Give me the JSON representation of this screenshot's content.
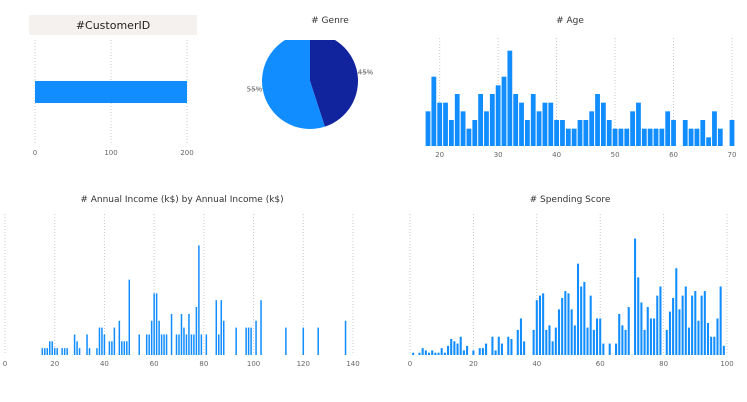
{
  "theme": {
    "bar_color": "#118dff",
    "dark_color": "#12239e"
  },
  "chart_data": [
    {
      "id": "customer",
      "type": "bar",
      "title": "#CustomerID",
      "categories": [
        ""
      ],
      "values": [
        200
      ],
      "xlim": [
        0,
        200
      ],
      "xticks": [
        "0",
        "100",
        "200"
      ]
    },
    {
      "id": "genre",
      "type": "pie",
      "title": "# Genre",
      "slices": [
        {
          "label": "45%",
          "value": 45,
          "color": "#12239e"
        },
        {
          "label": "55%",
          "value": 55,
          "color": "#118dff"
        }
      ]
    },
    {
      "id": "age",
      "type": "bar",
      "title": "# Age",
      "xlim": [
        18,
        70
      ],
      "ylim": [
        0,
        12
      ],
      "xticks": [
        "20",
        "30",
        "40",
        "50",
        "60",
        "70"
      ],
      "x": [
        18,
        19,
        20,
        21,
        22,
        23,
        24,
        25,
        26,
        27,
        28,
        29,
        30,
        31,
        32,
        33,
        34,
        35,
        36,
        37,
        38,
        39,
        40,
        41,
        42,
        43,
        44,
        45,
        46,
        47,
        48,
        49,
        50,
        51,
        52,
        53,
        54,
        55,
        56,
        57,
        58,
        59,
        60,
        61,
        62,
        63,
        64,
        65,
        66,
        67,
        68,
        69,
        70
      ],
      "values": [
        4,
        8,
        5,
        5,
        3,
        6,
        4,
        2,
        3,
        6,
        4,
        6,
        7,
        8,
        11,
        6,
        5,
        3,
        6,
        4,
        5,
        5,
        3,
        3,
        2,
        2,
        3,
        3,
        4,
        6,
        5,
        3,
        2,
        2,
        2,
        4,
        5,
        2,
        2,
        2,
        2,
        4,
        3,
        0,
        3,
        2,
        2,
        3,
        1,
        4,
        2,
        0,
        3
      ]
    },
    {
      "id": "income",
      "type": "bar",
      "title": "# Annual Income (k$) by Annual Income (k$)",
      "xlim": [
        0,
        140
      ],
      "ylim": [
        0,
        4
      ],
      "xticks": [
        "0",
        "20",
        "40",
        "60",
        "80",
        "100",
        "120",
        "140"
      ],
      "x": [
        15,
        16,
        17,
        18,
        19,
        20,
        21,
        23,
        24,
        25,
        28,
        29,
        30,
        33,
        34,
        37,
        38,
        39,
        40,
        42,
        43,
        44,
        46,
        47,
        48,
        49,
        50,
        54,
        57,
        58,
        59,
        60,
        61,
        62,
        63,
        64,
        65,
        67,
        69,
        70,
        71,
        72,
        73,
        74,
        75,
        76,
        77,
        78,
        79,
        81,
        85,
        86,
        87,
        88,
        93,
        97,
        98,
        99,
        101,
        103,
        113,
        120,
        126,
        137
      ],
      "values": [
        0.2,
        0.2,
        0.2,
        0.4,
        0.4,
        0.2,
        0.2,
        0.2,
        0.2,
        0.2,
        0.6,
        0.4,
        0.2,
        0.6,
        0.2,
        0.2,
        0.8,
        0.8,
        0.6,
        0.4,
        0.4,
        0.8,
        1.0,
        0.4,
        0.4,
        0.4,
        2.2,
        0.6,
        0.6,
        0.6,
        1.0,
        1.8,
        1.8,
        1.0,
        0.6,
        0.6,
        0.6,
        1.2,
        0.6,
        0.6,
        1.2,
        0.8,
        0.6,
        1.2,
        0.6,
        0.6,
        1.4,
        3.2,
        0.6,
        0.6,
        1.6,
        0.6,
        1.6,
        1.0,
        0.8,
        0.8,
        0.8,
        0.8,
        1.0,
        1.6,
        0.8,
        0.8,
        0.8,
        1.0
      ]
    },
    {
      "id": "spending",
      "type": "bar",
      "title": "# Spending Score",
      "xlim": [
        0,
        100
      ],
      "ylim": [
        0,
        6
      ],
      "xticks": [
        "0",
        "20",
        "40",
        "60",
        "80",
        "100"
      ],
      "x": [
        1,
        3,
        4,
        5,
        6,
        7,
        8,
        9,
        10,
        11,
        12,
        13,
        14,
        15,
        16,
        17,
        18,
        20,
        22,
        23,
        24,
        26,
        27,
        28,
        29,
        31,
        32,
        34,
        35,
        36,
        39,
        40,
        41,
        42,
        43,
        44,
        45,
        46,
        47,
        48,
        49,
        50,
        51,
        52,
        53,
        54,
        55,
        56,
        57,
        58,
        59,
        60,
        61,
        63,
        65,
        66,
        67,
        68,
        69,
        71,
        72,
        73,
        74,
        75,
        76,
        77,
        78,
        79,
        81,
        82,
        83,
        84,
        85,
        86,
        87,
        88,
        89,
        90,
        91,
        92,
        93,
        94,
        95,
        96,
        97,
        98,
        99
      ],
      "values": [
        0.1,
        0.1,
        0.3,
        0.2,
        0.1,
        0.2,
        0.1,
        0.1,
        0.3,
        0.1,
        0.4,
        0.7,
        0.6,
        0.5,
        0.8,
        0.2,
        0.4,
        0.2,
        0.3,
        0.3,
        0.5,
        0.8,
        0.2,
        0.8,
        0.5,
        0.8,
        0.7,
        1.1,
        1.6,
        0.6,
        1.1,
        2.4,
        2.6,
        2.7,
        1.1,
        1.3,
        0.6,
        1.2,
        2.0,
        2.5,
        2.8,
        2.7,
        2.0,
        1.3,
        4.0,
        3.0,
        3.2,
        1.2,
        2.6,
        1.1,
        1.6,
        1.6,
        0.5,
        0.5,
        0.5,
        1.8,
        1.3,
        1.1,
        2.1,
        5.1,
        3.4,
        2.3,
        1.1,
        2.1,
        1.6,
        1.6,
        2.6,
        3.0,
        1.1,
        1.9,
        2.5,
        3.8,
        2.0,
        2.6,
        3.0,
        1.2,
        2.6,
        2.8,
        1.5,
        2.6,
        2.8,
        1.4,
        0.8,
        0.8,
        1.6,
        3.0,
        0.4
      ]
    }
  ]
}
